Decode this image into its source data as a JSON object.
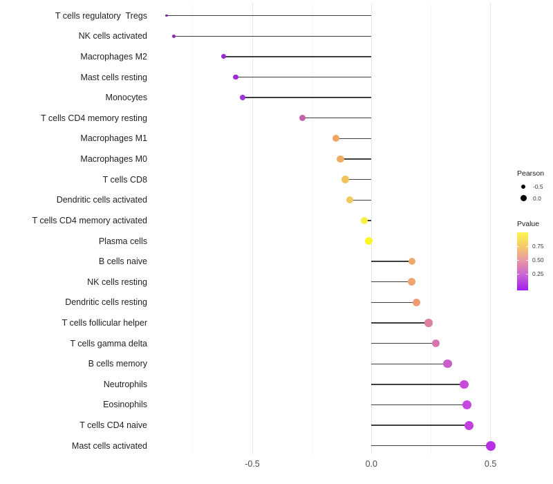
{
  "chart_data": {
    "type": "lollipop",
    "title": "",
    "xlabel": "",
    "ylabel": "",
    "orientation": "horizontal",
    "grid": true,
    "xlim": [
      -0.93,
      0.57
    ],
    "x_ticks": [
      -0.5,
      0.0,
      0.5
    ],
    "x_tick_labels": [
      "-0.5",
      "0.0",
      "0.5"
    ],
    "x_minor_ticks": [
      -0.75,
      -0.25,
      0.25
    ],
    "categories": [
      "T cells regulatory  Tregs",
      "NK cells activated",
      "Macrophages M2",
      "Mast cells resting",
      "Monocytes",
      "T cells CD4 memory resting",
      "Macrophages M1",
      "Macrophages M0",
      "T cells CD8",
      "Dendritic cells activated",
      "T cells CD4 memory activated",
      "Plasma cells",
      "B cells naive",
      "NK cells resting",
      "Dendritic cells resting",
      "T cells follicular helper",
      "T cells gamma delta",
      "B cells memory",
      "Neutrophils",
      "Eosinophils",
      "T cells CD4 naive",
      "Mast cells activated"
    ],
    "series": [
      {
        "name": "Pearson",
        "values": [
          -0.86,
          -0.83,
          -0.62,
          -0.57,
          -0.54,
          -0.29,
          -0.15,
          -0.13,
          -0.11,
          -0.09,
          -0.03,
          -0.01,
          0.17,
          0.17,
          0.19,
          0.24,
          0.27,
          0.32,
          0.39,
          0.4,
          0.41,
          0.5
        ]
      }
    ],
    "dot_colors": [
      "#7E22AA",
      "#8C27C0",
      "#9A2BD2",
      "#9D2DD6",
      "#A134DB",
      "#C760AC",
      "#EFA763",
      "#F0AB63",
      "#F3C35A",
      "#F3C95B",
      "#F7EF3E",
      "#FBF527",
      "#EFA76C",
      "#EFA56F",
      "#EC9D73",
      "#DB809F",
      "#D874AD",
      "#C75FC7",
      "#C74ADB",
      "#C648DF",
      "#C340DF",
      "#B731E3"
    ],
    "dot_radii": [
      1.8,
      2.4,
      3.5,
      3.8,
      4.2,
      4.6,
      5.0,
      5.1,
      5.2,
      5.2,
      5.4,
      5.4,
      5.3,
      5.4,
      5.5,
      5.7,
      5.8,
      6.2,
      6.3,
      6.5,
      6.5,
      7.0
    ],
    "stem_color": "#3d3d3d"
  },
  "legend": {
    "pearson": {
      "title": "Pearson",
      "dot_color": "#000000",
      "entries": [
        {
          "label": "-0.5",
          "radius": 3.2
        },
        {
          "label": "0.0",
          "radius": 4.5
        }
      ]
    },
    "pvalue": {
      "title": "Pvalue",
      "tick_labels": [
        "0.75",
        "0.50",
        "0.25"
      ],
      "tick_values": [
        0.75,
        0.5,
        0.25
      ],
      "gradient_stops_bottom_to_top": [
        "#A21EEE",
        "#C760D6",
        "#E795A8",
        "#F5C96E",
        "#FBF64C"
      ]
    }
  },
  "colors": {
    "background": "#ffffff",
    "grid_major": "#e7e7e7",
    "grid_minor": "#f4f4f4",
    "axis_text": "#4d4d4d",
    "label_text": "#1f1f1f"
  }
}
